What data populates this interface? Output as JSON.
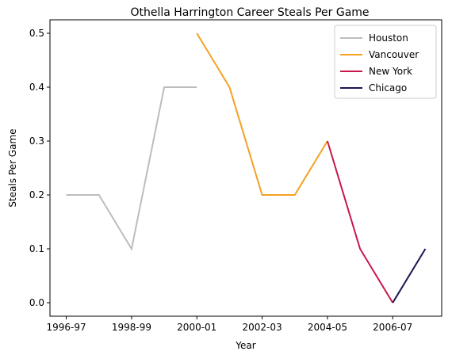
{
  "chart_data": {
    "type": "line",
    "title": "Othella Harrington Career Steals Per Game",
    "xlabel": "Year",
    "ylabel": "Steals Per Game",
    "xticks": [
      "1996-97",
      "1998-99",
      "2000-01",
      "2002-03",
      "2004-05",
      "2006-07"
    ],
    "yticks": [
      "0.0",
      "0.1",
      "0.2",
      "0.3",
      "0.4",
      "0.5"
    ],
    "ylim": [
      -0.025,
      0.525
    ],
    "grid": false,
    "legend_position": "top-right",
    "series": [
      {
        "name": "Houston",
        "color": "#bdbdbd",
        "points": [
          {
            "x": "1996-97",
            "y": 0.2
          },
          {
            "x": "1997-98",
            "y": 0.2
          },
          {
            "x": "1998-99",
            "y": 0.1
          },
          {
            "x": "1999-00",
            "y": 0.4
          },
          {
            "x": "2000-01",
            "y": 0.4
          }
        ]
      },
      {
        "name": "Vancouver",
        "color": "#f5a023",
        "points": [
          {
            "x": "2000-01",
            "y": 0.5
          },
          {
            "x": "2001-02",
            "y": 0.4
          },
          {
            "x": "2002-03",
            "y": 0.2
          },
          {
            "x": "2003-04",
            "y": 0.2
          },
          {
            "x": "2004-05",
            "y": 0.3
          }
        ]
      },
      {
        "name": "New York",
        "color": "#c8174a",
        "points": [
          {
            "x": "2004-05",
            "y": 0.3
          },
          {
            "x": "2005-06",
            "y": 0.1
          },
          {
            "x": "2006-07",
            "y": 0.0
          }
        ]
      },
      {
        "name": "Chicago",
        "color": "#1c1352",
        "points": [
          {
            "x": "2006-07",
            "y": 0.0
          },
          {
            "x": "2007-08",
            "y": 0.1
          }
        ]
      }
    ]
  }
}
